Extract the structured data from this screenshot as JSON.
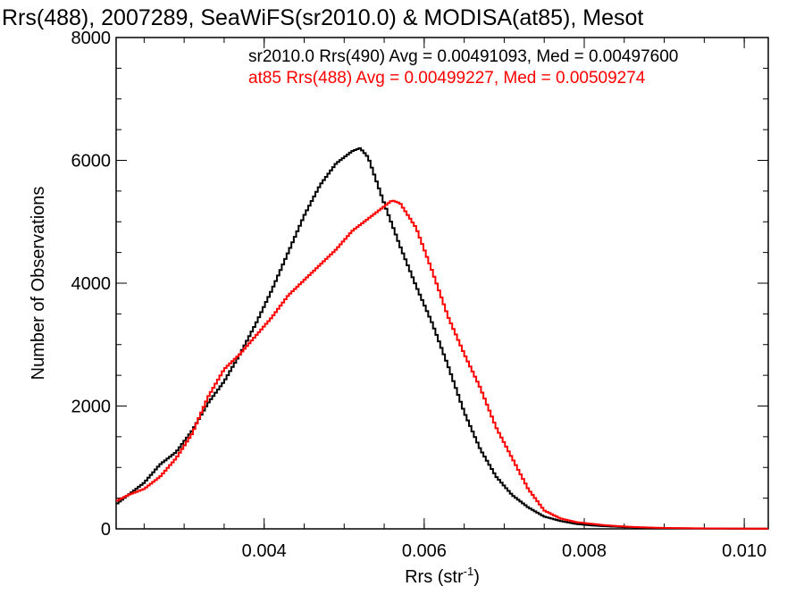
{
  "chart_data": {
    "type": "line",
    "title": "Rrs(488), 2007289, SeaWiFS(sr2010.0) & MODISA(at85), Mesot",
    "xlabel": "Rrs (str",
    "xlabel_sup": "-1",
    "xlabel_end": ")",
    "ylabel": "Number of Observations",
    "xlim": [
      0.00215,
      0.0103
    ],
    "ylim": [
      0,
      8000
    ],
    "x_ticks": [
      0.004,
      0.006,
      0.008,
      0.01
    ],
    "x_tick_labels": [
      "0.004",
      "0.006",
      "0.008",
      "0.010"
    ],
    "y_ticks": [
      0,
      2000,
      4000,
      6000,
      8000
    ],
    "y_tick_labels": [
      "0",
      "2000",
      "4000",
      "6000",
      "8000"
    ],
    "grid": false,
    "legend_position": "top-right",
    "series": [
      {
        "legend_text": "sr2010.0 Rrs(490) Avg = 0.00491093, Med = 0.00497600",
        "color": "#000000",
        "x": [
          0.00215,
          0.0023,
          0.0025,
          0.0027,
          0.0029,
          0.0031,
          0.0033,
          0.0035,
          0.0037,
          0.0039,
          0.0041,
          0.0043,
          0.0045,
          0.0047,
          0.0049,
          0.0051,
          0.0052,
          0.0053,
          0.0055,
          0.0057,
          0.0059,
          0.0061,
          0.0063,
          0.0065,
          0.0067,
          0.0069,
          0.0071,
          0.0073,
          0.0075,
          0.0077,
          0.0079,
          0.0081,
          0.0083,
          0.0085,
          0.0087,
          0.0089,
          0.0091,
          0.0095,
          0.0099,
          0.0103
        ],
        "y": [
          400,
          550,
          750,
          1050,
          1250,
          1600,
          2050,
          2400,
          2850,
          3350,
          3900,
          4500,
          5100,
          5600,
          5950,
          6150,
          6200,
          6050,
          5300,
          4600,
          3950,
          3350,
          2650,
          1900,
          1300,
          850,
          550,
          350,
          200,
          130,
          80,
          55,
          40,
          28,
          20,
          14,
          10,
          6,
          4,
          3
        ]
      },
      {
        "legend_text": "at85 Rrs(488) Avg = 0.00499227, Med = 0.00509274",
        "color": "#ff0000",
        "x": [
          0.00215,
          0.0023,
          0.0025,
          0.0027,
          0.0029,
          0.0031,
          0.0033,
          0.0035,
          0.0037,
          0.0039,
          0.0041,
          0.0043,
          0.0045,
          0.0047,
          0.0049,
          0.0051,
          0.0053,
          0.0055,
          0.0056,
          0.0057,
          0.0059,
          0.0061,
          0.0063,
          0.0065,
          0.0067,
          0.0069,
          0.0071,
          0.0073,
          0.0075,
          0.0077,
          0.0079,
          0.0081,
          0.0083,
          0.0085,
          0.0087,
          0.0089,
          0.0091,
          0.0095,
          0.0099,
          0.0103
        ],
        "y": [
          450,
          550,
          650,
          850,
          1150,
          1550,
          2150,
          2600,
          2850,
          3150,
          3450,
          3800,
          4050,
          4300,
          4550,
          4850,
          5050,
          5250,
          5350,
          5300,
          4900,
          4200,
          3450,
          2850,
          2300,
          1650,
          1150,
          650,
          300,
          170,
          110,
          80,
          55,
          38,
          26,
          18,
          13,
          8,
          5,
          3
        ]
      }
    ]
  }
}
